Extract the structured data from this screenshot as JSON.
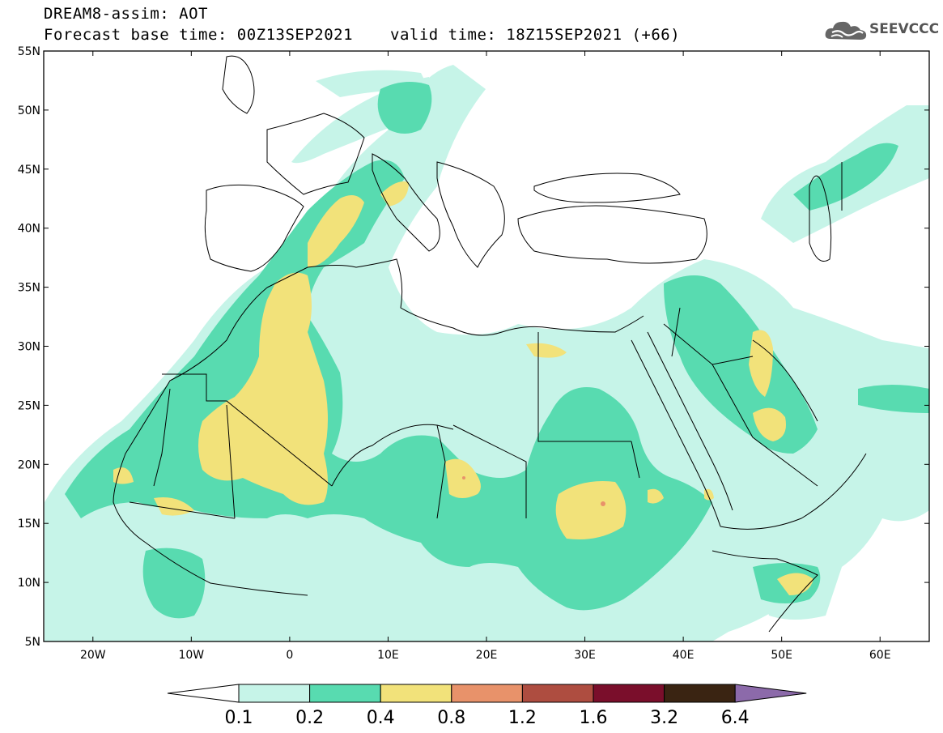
{
  "header": {
    "title": "DREAM8-assim: AOT",
    "forecast_base": "Forecast base time: 00Z13SEP2021",
    "valid_time": "valid time: 18Z15SEP2021 (+66)",
    "logo_text": "SEEVCCC"
  },
  "map": {
    "lon_range": [
      -25,
      65
    ],
    "lat_range": [
      5,
      55
    ],
    "lat_ticks": [
      "55N",
      "50N",
      "45N",
      "40N",
      "35N",
      "30N",
      "25N",
      "20N",
      "15N",
      "10N",
      "5N"
    ],
    "lon_ticks": [
      "20W",
      "10W",
      "0",
      "10E",
      "20E",
      "30E",
      "40E",
      "50E",
      "60E"
    ],
    "field": "Aerosol Optical Thickness"
  },
  "colorbar": {
    "levels": [
      "0.1",
      "0.2",
      "0.4",
      "0.8",
      "1.2",
      "1.6",
      "3.2",
      "6.4"
    ],
    "colors": [
      "#ffffff",
      "#c6f4e8",
      "#58dbb0",
      "#f2e27a",
      "#e8926a",
      "#ae4d40",
      "#7a0e2b",
      "#3a2412",
      "#8c6aaa"
    ]
  }
}
